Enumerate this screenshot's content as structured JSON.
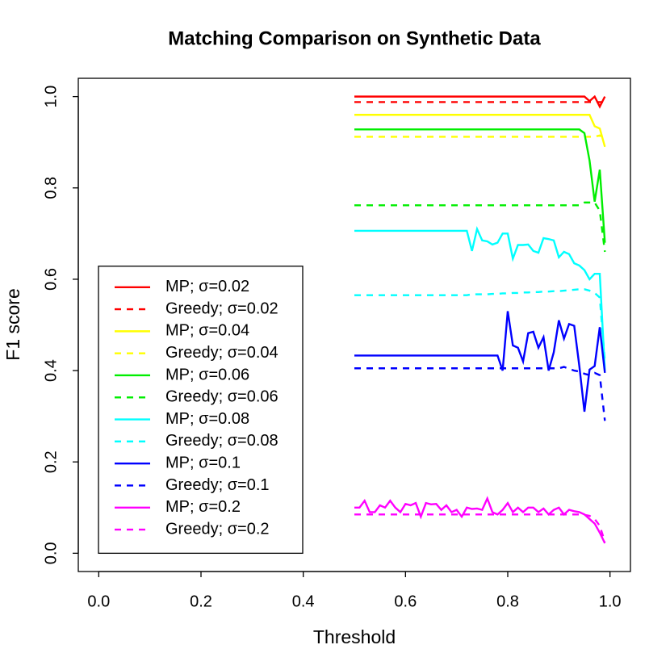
{
  "chart_data": {
    "type": "line",
    "title": "Matching Comparison on Synthetic Data",
    "x_label": "Threshold",
    "y_label": "F1 score",
    "xlim": [
      -0.04,
      1.04
    ],
    "ylim": [
      -0.04,
      1.04
    ],
    "xticks": [
      {
        "value": 0,
        "label": "0.0"
      },
      0.2,
      0.4,
      0.6,
      0.8,
      {
        "value": 1,
        "label": "1.0"
      }
    ],
    "yticks": [
      {
        "value": 0,
        "label": "0.0"
      },
      0.2,
      0.4,
      0.6,
      0.8,
      {
        "value": 1,
        "label": "1.0"
      }
    ],
    "legend": "bottom-left",
    "x": [
      0.5,
      0.51,
      0.52,
      0.53,
      0.54,
      0.55,
      0.56,
      0.57,
      0.58,
      0.59,
      0.6,
      0.61,
      0.62,
      0.63,
      0.64,
      0.65,
      0.66,
      0.67,
      0.68,
      0.69,
      0.7,
      0.71,
      0.72,
      0.73,
      0.74,
      0.75,
      0.76,
      0.77,
      0.78,
      0.79,
      0.8,
      0.81,
      0.82,
      0.83,
      0.84,
      0.85,
      0.86,
      0.87,
      0.88,
      0.89,
      0.9,
      0.91,
      0.92,
      0.93,
      0.94,
      0.95,
      0.96,
      0.97,
      0.98,
      0.99
    ],
    "series": [
      {
        "name": "MP; σ=0.02",
        "color": "#ff0000",
        "linestyle": "solid",
        "values": [
          1,
          1,
          1,
          1,
          1,
          1,
          1,
          1,
          1,
          1,
          1,
          1,
          1,
          1,
          1,
          1,
          1,
          1,
          1,
          1,
          1,
          1,
          1,
          1,
          1,
          1,
          1,
          1,
          1,
          1,
          1,
          1,
          1,
          1,
          1,
          1,
          1,
          1,
          1,
          1,
          1,
          1,
          1,
          1,
          1,
          1,
          0.99,
          1,
          0.978,
          1
        ]
      },
      {
        "name": "Greedy; σ=0.02",
        "color": "#ff0000",
        "linestyle": "dashed",
        "values": [
          0.988,
          0.988,
          0.988,
          0.988,
          0.988,
          0.988,
          0.988,
          0.988,
          0.988,
          0.988,
          0.988,
          0.988,
          0.988,
          0.988,
          0.988,
          0.988,
          0.988,
          0.988,
          0.988,
          0.988,
          0.988,
          0.988,
          0.988,
          0.988,
          0.988,
          0.988,
          0.988,
          0.988,
          0.988,
          0.988,
          0.988,
          0.988,
          0.988,
          0.988,
          0.988,
          0.988,
          0.988,
          0.988,
          0.988,
          0.988,
          0.988,
          0.988,
          0.988,
          0.988,
          0.988,
          0.988,
          0.988,
          0.988,
          0.988,
          0.988
        ]
      },
      {
        "name": "MP; σ=0.04",
        "color": "#ffff00",
        "linestyle": "solid",
        "values": [
          0.96,
          0.96,
          0.96,
          0.96,
          0.96,
          0.96,
          0.96,
          0.96,
          0.96,
          0.96,
          0.96,
          0.96,
          0.96,
          0.96,
          0.96,
          0.96,
          0.96,
          0.96,
          0.96,
          0.96,
          0.96,
          0.96,
          0.96,
          0.96,
          0.96,
          0.96,
          0.96,
          0.96,
          0.96,
          0.96,
          0.96,
          0.96,
          0.96,
          0.96,
          0.96,
          0.96,
          0.96,
          0.96,
          0.96,
          0.96,
          0.96,
          0.96,
          0.96,
          0.96,
          0.96,
          0.96,
          0.96,
          0.935,
          0.93,
          0.89
        ]
      },
      {
        "name": "Greedy; σ=0.04",
        "color": "#ffff00",
        "linestyle": "dashed",
        "values": [
          0.912,
          0.912,
          0.912,
          0.912,
          0.912,
          0.912,
          0.912,
          0.912,
          0.912,
          0.912,
          0.912,
          0.912,
          0.912,
          0.912,
          0.912,
          0.912,
          0.912,
          0.912,
          0.912,
          0.912,
          0.912,
          0.912,
          0.912,
          0.912,
          0.912,
          0.912,
          0.912,
          0.912,
          0.912,
          0.912,
          0.912,
          0.912,
          0.912,
          0.912,
          0.912,
          0.912,
          0.912,
          0.912,
          0.912,
          0.912,
          0.912,
          0.912,
          0.912,
          0.912,
          0.912,
          0.912,
          0.912,
          0.912,
          0.915,
          0.91
        ]
      },
      {
        "name": "MP; σ=0.06",
        "color": "#00ee00",
        "linestyle": "solid",
        "values": [
          0.928,
          0.928,
          0.928,
          0.928,
          0.928,
          0.928,
          0.928,
          0.928,
          0.928,
          0.928,
          0.928,
          0.928,
          0.928,
          0.928,
          0.928,
          0.928,
          0.928,
          0.928,
          0.928,
          0.928,
          0.928,
          0.928,
          0.928,
          0.928,
          0.928,
          0.928,
          0.928,
          0.928,
          0.928,
          0.928,
          0.928,
          0.928,
          0.928,
          0.928,
          0.928,
          0.928,
          0.928,
          0.928,
          0.928,
          0.928,
          0.928,
          0.928,
          0.928,
          0.928,
          0.928,
          0.92,
          0.86,
          0.77,
          0.84,
          0.68
        ]
      },
      {
        "name": "Greedy; σ=0.06",
        "color": "#00ee00",
        "linestyle": "dashed",
        "values": [
          0.762,
          0.762,
          0.762,
          0.762,
          0.762,
          0.762,
          0.762,
          0.762,
          0.762,
          0.762,
          0.762,
          0.762,
          0.762,
          0.762,
          0.762,
          0.762,
          0.762,
          0.762,
          0.762,
          0.762,
          0.762,
          0.762,
          0.762,
          0.762,
          0.762,
          0.762,
          0.762,
          0.762,
          0.762,
          0.762,
          0.762,
          0.762,
          0.762,
          0.762,
          0.762,
          0.762,
          0.762,
          0.762,
          0.762,
          0.762,
          0.762,
          0.762,
          0.762,
          0.762,
          0.762,
          0.768,
          0.768,
          0.768,
          0.75,
          0.66
        ]
      },
      {
        "name": "MP; σ=0.08",
        "color": "#00ffff",
        "linestyle": "solid",
        "values": [
          0.706,
          0.706,
          0.706,
          0.706,
          0.706,
          0.706,
          0.706,
          0.706,
          0.706,
          0.706,
          0.706,
          0.706,
          0.706,
          0.706,
          0.706,
          0.706,
          0.706,
          0.706,
          0.706,
          0.706,
          0.706,
          0.706,
          0.706,
          0.662,
          0.71,
          0.685,
          0.683,
          0.676,
          0.68,
          0.7,
          0.7,
          0.645,
          0.675,
          0.675,
          0.676,
          0.662,
          0.658,
          0.69,
          0.688,
          0.685,
          0.648,
          0.66,
          0.655,
          0.635,
          0.63,
          0.62,
          0.6,
          0.612,
          0.612,
          0.4
        ]
      },
      {
        "name": "Greedy; σ=0.08",
        "color": "#00ffff",
        "linestyle": "dashed",
        "values": [
          0.565,
          0.565,
          0.565,
          0.565,
          0.565,
          0.565,
          0.565,
          0.565,
          0.565,
          0.565,
          0.565,
          0.565,
          0.565,
          0.565,
          0.565,
          0.565,
          0.565,
          0.565,
          0.565,
          0.565,
          0.565,
          0.565,
          0.565,
          0.567,
          0.567,
          0.567,
          0.567,
          0.568,
          0.568,
          0.569,
          0.569,
          0.57,
          0.57,
          0.571,
          0.571,
          0.572,
          0.572,
          0.573,
          0.573,
          0.574,
          0.574,
          0.575,
          0.576,
          0.577,
          0.578,
          0.578,
          0.575,
          0.57,
          0.56,
          0.42
        ]
      },
      {
        "name": "MP; σ=0.1",
        "color": "#0000ff",
        "linestyle": "solid",
        "values": [
          0.433,
          0.433,
          0.433,
          0.433,
          0.433,
          0.433,
          0.433,
          0.433,
          0.433,
          0.433,
          0.433,
          0.433,
          0.433,
          0.433,
          0.433,
          0.433,
          0.433,
          0.433,
          0.433,
          0.433,
          0.433,
          0.433,
          0.433,
          0.433,
          0.433,
          0.433,
          0.433,
          0.433,
          0.433,
          0.4,
          0.53,
          0.455,
          0.45,
          0.42,
          0.482,
          0.485,
          0.45,
          0.473,
          0.4,
          0.44,
          0.51,
          0.47,
          0.502,
          0.498,
          0.41,
          0.31,
          0.402,
          0.41,
          0.495,
          0.395
        ]
      },
      {
        "name": "Greedy; σ=0.1",
        "color": "#0000ff",
        "linestyle": "dashed",
        "values": [
          0.405,
          0.405,
          0.405,
          0.405,
          0.405,
          0.405,
          0.405,
          0.405,
          0.405,
          0.405,
          0.405,
          0.405,
          0.405,
          0.405,
          0.405,
          0.405,
          0.405,
          0.405,
          0.405,
          0.405,
          0.405,
          0.405,
          0.405,
          0.405,
          0.405,
          0.405,
          0.405,
          0.405,
          0.405,
          0.405,
          0.405,
          0.405,
          0.405,
          0.405,
          0.405,
          0.405,
          0.405,
          0.405,
          0.405,
          0.405,
          0.405,
          0.408,
          0.404,
          0.4,
          0.398,
          0.393,
          0.39,
          0.395,
          0.39,
          0.29
        ]
      },
      {
        "name": "MP; σ=0.2",
        "color": "#ff00ff",
        "linestyle": "solid",
        "values": [
          0.1,
          0.1,
          0.115,
          0.09,
          0.09,
          0.105,
          0.1,
          0.115,
          0.1,
          0.09,
          0.108,
          0.105,
          0.11,
          0.08,
          0.11,
          0.107,
          0.108,
          0.095,
          0.105,
          0.09,
          0.095,
          0.08,
          0.1,
          0.097,
          0.098,
          0.095,
          0.12,
          0.09,
          0.085,
          0.095,
          0.11,
          0.09,
          0.1,
          0.09,
          0.1,
          0.1,
          0.09,
          0.098,
          0.085,
          0.095,
          0.1,
          0.085,
          0.095,
          0.092,
          0.09,
          0.085,
          0.075,
          0.065,
          0.045,
          0.022
        ]
      },
      {
        "name": "Greedy; σ=0.2",
        "color": "#ff00ff",
        "linestyle": "dashed",
        "values": [
          0.085,
          0.085,
          0.085,
          0.085,
          0.085,
          0.085,
          0.085,
          0.085,
          0.085,
          0.085,
          0.085,
          0.085,
          0.085,
          0.085,
          0.085,
          0.085,
          0.085,
          0.085,
          0.085,
          0.085,
          0.085,
          0.085,
          0.085,
          0.085,
          0.085,
          0.085,
          0.085,
          0.085,
          0.085,
          0.085,
          0.085,
          0.085,
          0.085,
          0.085,
          0.085,
          0.085,
          0.085,
          0.085,
          0.085,
          0.085,
          0.085,
          0.085,
          0.085,
          0.085,
          0.085,
          0.084,
          0.082,
          0.075,
          0.06,
          0.025
        ]
      }
    ]
  }
}
